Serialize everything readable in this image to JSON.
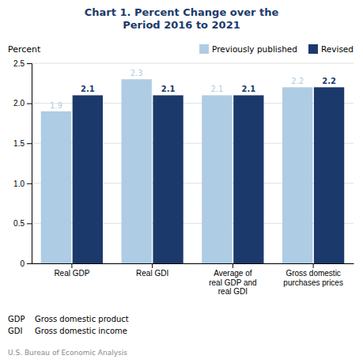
{
  "chart_data": {
    "type": "bar",
    "title": "Chart 1. Percent Change over the\nPeriod 2016 to 2021",
    "y_label": "Percent",
    "categories": [
      "Real GDP",
      "Real GDI",
      "Average of\nreal GDP and\nreal GDI",
      "Gross domestic\npurchases prices"
    ],
    "series": [
      {
        "name": "Previously published",
        "color": "#aecce4",
        "values": [
          1.9,
          2.3,
          2.1,
          2.2
        ]
      },
      {
        "name": "Revised",
        "color": "#1b3a6b",
        "values": [
          2.1,
          2.1,
          2.1,
          2.2
        ]
      }
    ],
    "ylim": [
      0,
      2.5
    ],
    "yticks": [
      0,
      0.5,
      {
        "value": 1.0,
        "label": "1.0"
      },
      1.5,
      {
        "value": 2.0,
        "label": "2.0"
      },
      2.5
    ],
    "grid": true,
    "legend": "upper right",
    "data_labels": true,
    "footnotes": [
      {
        "abbr": "GDP",
        "text": "Gross domestic product"
      },
      {
        "abbr": "GDI",
        "text": "Gross domestic income"
      }
    ],
    "source": "U.S. Bureau of Economic Analysis"
  }
}
